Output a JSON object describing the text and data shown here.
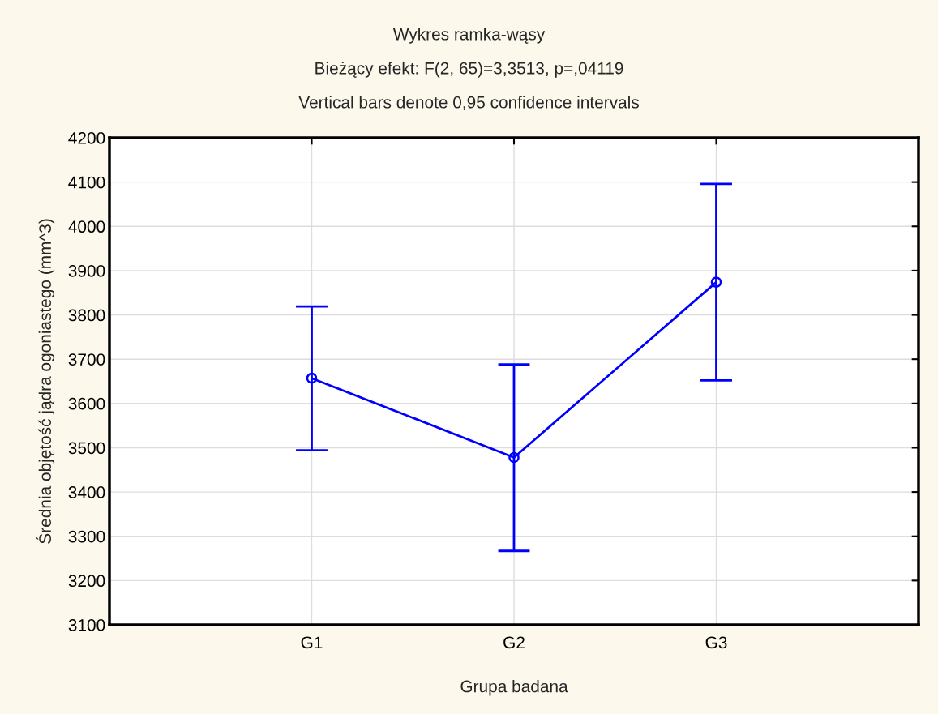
{
  "chart_data": {
    "type": "line",
    "title": "Wykres ramka-wąsy",
    "subtitle": "Bieżący efekt: F(2, 65)=3,3513, p=,04119",
    "annotations": [
      "Vertical bars denote 0,95 confidence intervals"
    ],
    "xlabel": "Grupa badana",
    "ylabel": "Średnia objętość jądra ogoniastego (mm^3)",
    "categories": [
      "G1",
      "G2",
      "G3"
    ],
    "series": [
      {
        "color": "#0000ff",
        "values": [
          3657,
          3478,
          3874
        ],
        "errors": [
          [
            3494,
            3819
          ],
          [
            3267,
            3688
          ],
          [
            3652,
            4096
          ]
        ]
      }
    ],
    "ylim": [
      3100,
      4200
    ],
    "yticks": [
      3100,
      3200,
      3300,
      3400,
      3500,
      3600,
      3700,
      3800,
      3900,
      4000,
      4100,
      4200
    ],
    "grid": true,
    "marker": "circle",
    "line_style": "solid"
  }
}
